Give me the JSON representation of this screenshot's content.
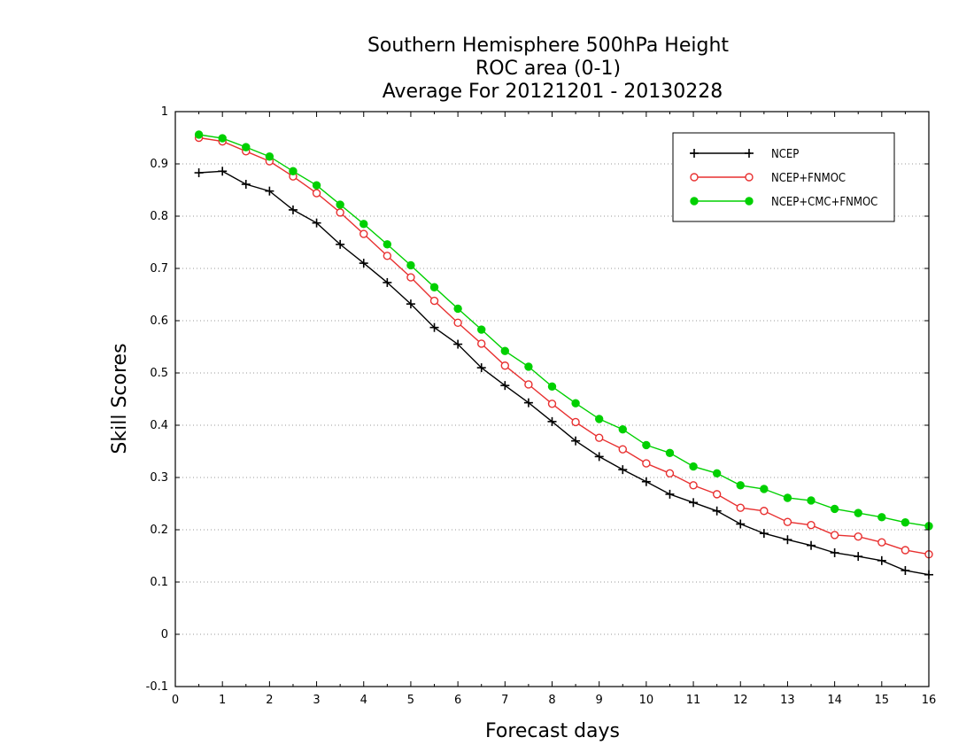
{
  "chart_data": {
    "type": "line",
    "title_lines": [
      "Southern Hemisphere 500hPa Height",
      "ROC area (0-1)",
      "Average For 20121201 - 20130228"
    ],
    "xlabel": "Forecast days",
    "ylabel": "Skill Scores",
    "xlim": [
      0,
      16
    ],
    "ylim": [
      -0.1,
      1
    ],
    "xticks": [
      "0",
      "1",
      "2",
      "3",
      "4",
      "5",
      "6",
      "7",
      "8",
      "9",
      "10",
      "11",
      "12",
      "13",
      "14",
      "15",
      "16"
    ],
    "yticks": [
      "-0.1",
      "0",
      "0.1",
      "0.2",
      "0.3",
      "0.4",
      "0.5",
      "0.6",
      "0.7",
      "0.8",
      "0.9",
      "1"
    ],
    "grid": "horizontal dotted",
    "legend_position": "top-right",
    "x": [
      0.5,
      1,
      1.5,
      2,
      2.5,
      3,
      3.5,
      4,
      4.5,
      5,
      5.5,
      6,
      6.5,
      7,
      7.5,
      8,
      8.5,
      9,
      9.5,
      10,
      10.5,
      11,
      11.5,
      12,
      12.5,
      13,
      13.5,
      14,
      14.5,
      15,
      15.5,
      16
    ],
    "series": [
      {
        "name": "NCEP",
        "color": "#000000",
        "marker": "plus",
        "values": [
          0.883,
          0.886,
          0.861,
          0.848,
          0.812,
          0.787,
          0.746,
          0.71,
          0.673,
          0.632,
          0.587,
          0.555,
          0.51,
          0.476,
          0.443,
          0.407,
          0.37,
          0.34,
          0.315,
          0.292,
          0.268,
          0.252,
          0.236,
          0.211,
          0.193,
          0.181,
          0.17,
          0.156,
          0.149,
          0.141,
          0.122,
          0.114
        ]
      },
      {
        "name": "NCEP+FNMOC",
        "color": "#e83030",
        "marker": "open-circle",
        "values": [
          0.95,
          0.943,
          0.924,
          0.905,
          0.876,
          0.844,
          0.807,
          0.766,
          0.724,
          0.683,
          0.638,
          0.596,
          0.556,
          0.514,
          0.478,
          0.441,
          0.406,
          0.376,
          0.354,
          0.327,
          0.308,
          0.285,
          0.268,
          0.242,
          0.236,
          0.215,
          0.209,
          0.19,
          0.187,
          0.176,
          0.161,
          0.153
        ]
      },
      {
        "name": "NCEP+CMC+FNMOC",
        "color": "#00d000",
        "marker": "filled-circle",
        "values": [
          0.956,
          0.949,
          0.932,
          0.914,
          0.886,
          0.859,
          0.822,
          0.785,
          0.746,
          0.706,
          0.664,
          0.623,
          0.583,
          0.542,
          0.512,
          0.474,
          0.442,
          0.412,
          0.392,
          0.362,
          0.347,
          0.321,
          0.308,
          0.285,
          0.278,
          0.261,
          0.256,
          0.24,
          0.232,
          0.224,
          0.214,
          0.207
        ]
      }
    ]
  }
}
